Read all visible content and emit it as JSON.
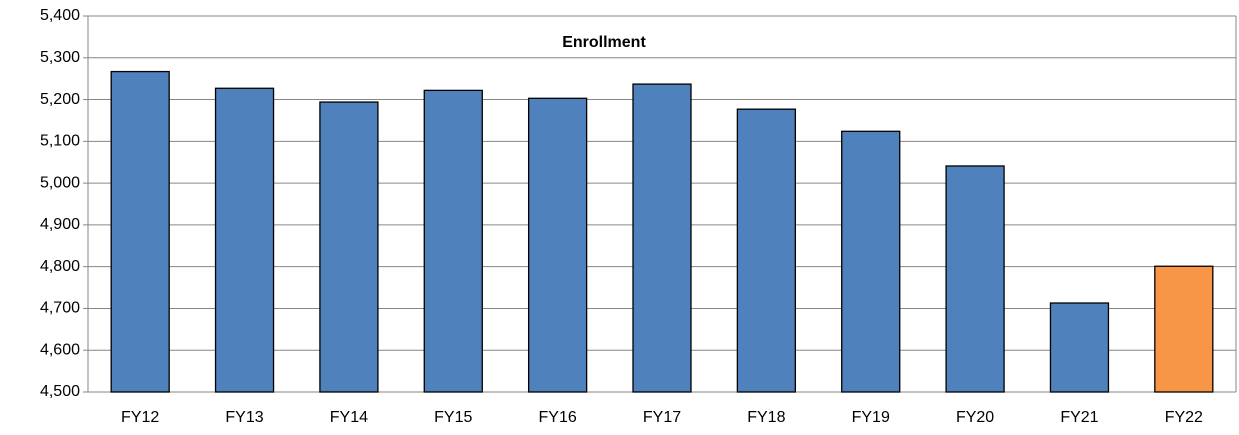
{
  "chart_data": {
    "type": "bar",
    "title": "Enrollment",
    "categories": [
      "FY12",
      "FY13",
      "FY14",
      "FY15",
      "FY16",
      "FY17",
      "FY18",
      "FY19",
      "FY20",
      "FY21",
      "FY22"
    ],
    "values": [
      5267,
      5227,
      5194,
      5222,
      5203,
      5237,
      5177,
      5124,
      5041,
      4713,
      4801
    ],
    "colors": [
      "#4f81bd",
      "#4f81bd",
      "#4f81bd",
      "#4f81bd",
      "#4f81bd",
      "#4f81bd",
      "#4f81bd",
      "#4f81bd",
      "#4f81bd",
      "#4f81bd",
      "#f79646"
    ],
    "ylim": [
      4500,
      5400
    ],
    "yticks": [
      {
        "value": 4500,
        "label": "4,500"
      },
      {
        "value": 4600,
        "label": "4,600"
      },
      {
        "value": 4700,
        "label": "4,700"
      },
      {
        "value": 4800,
        "label": "4,800"
      },
      {
        "value": 4900,
        "label": "4,900"
      },
      {
        "value": 5000,
        "label": "5,000"
      },
      {
        "value": 5100,
        "label": "5,100"
      },
      {
        "value": 5200,
        "label": "5,200"
      },
      {
        "value": 5300,
        "label": "5,300"
      },
      {
        "value": 5400,
        "label": "5,400"
      }
    ],
    "grid": true
  }
}
